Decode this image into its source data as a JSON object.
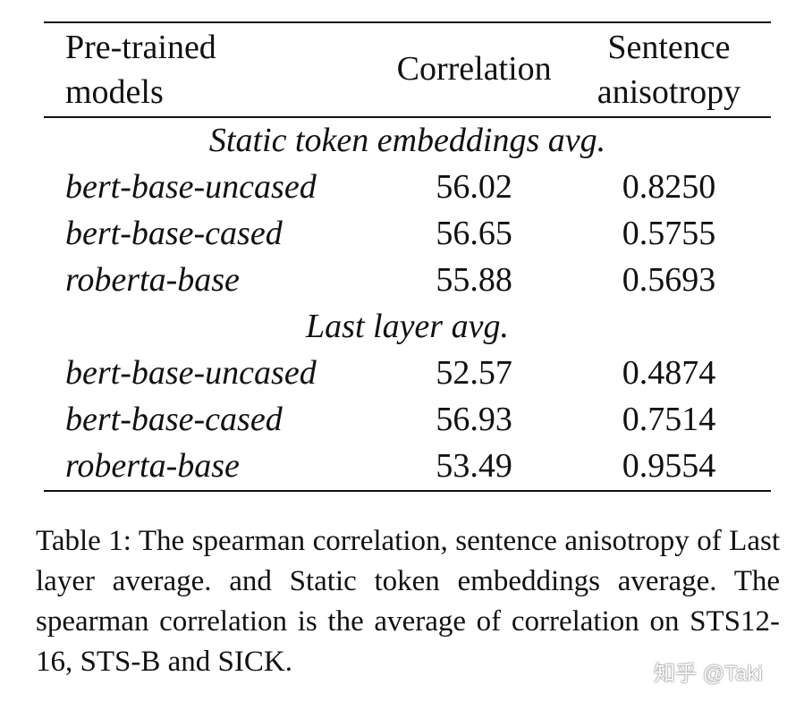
{
  "table": {
    "header": {
      "model_line1": "Pre-trained",
      "model_line2": "models",
      "correlation": "Correlation",
      "aniso_line1": "Sentence",
      "aniso_line2": "anisotropy"
    },
    "groups": [
      {
        "title": "Static token embeddings avg.",
        "rows": [
          {
            "model": "bert-base-uncased",
            "correlation": "56.02",
            "anisotropy": "0.8250"
          },
          {
            "model": "bert-base-cased",
            "correlation": "56.65",
            "anisotropy": "0.5755"
          },
          {
            "model": "roberta-base",
            "correlation": "55.88",
            "anisotropy": "0.5693"
          }
        ]
      },
      {
        "title": "Last layer avg.",
        "rows": [
          {
            "model": "bert-base-uncased",
            "correlation": "52.57",
            "anisotropy": "0.4874"
          },
          {
            "model": "bert-base-cased",
            "correlation": "56.93",
            "anisotropy": "0.7514"
          },
          {
            "model": "roberta-base",
            "correlation": "53.49",
            "anisotropy": "0.9554"
          }
        ]
      }
    ]
  },
  "caption": "Table 1: The spearman correlation, sentence anisotropy of Last layer average.  and Static token embeddings average.  The spearman correlation is the average of correlation on STS12-16, STS-B and SICK.",
  "watermark": "知乎 @Taki"
}
